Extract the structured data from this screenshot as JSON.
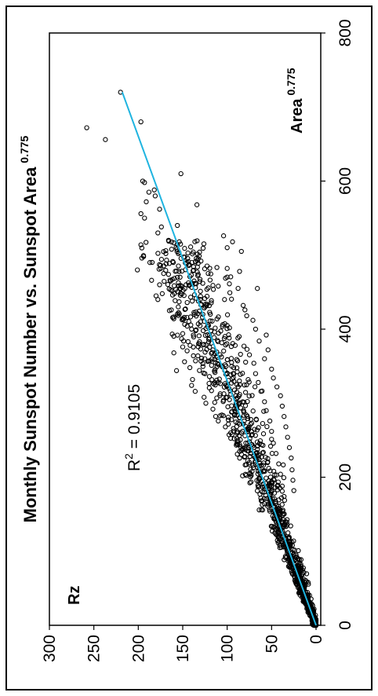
{
  "chart_data": {
    "type": "scatter",
    "title": "Monthly Sunspot Number vs. Sunspot Area",
    "title_superscript": "0.775",
    "xlabel": "Area",
    "xlabel_superscript": "0.775",
    "ylabel": "Rz",
    "xlim": [
      0,
      800
    ],
    "ylim": [
      0,
      300
    ],
    "x_ticks": [
      "0",
      "200",
      "400",
      "600",
      "800"
    ],
    "y_ticks": [
      "0",
      "50",
      "100",
      "150",
      "200",
      "250",
      "300"
    ],
    "grid": false,
    "orientation": "rotated-90-clockwise",
    "trendline": {
      "x": [
        0,
        720
      ],
      "y": [
        0,
        218
      ],
      "color": "#1fb4e0"
    },
    "r_squared_label": "R",
    "r_squared_exponent": "2",
    "r_squared_value": " = 0.9105",
    "marker_color": "#000000",
    "outliers": {
      "x": [
        720,
        680,
        672,
        656,
        600,
        598,
        588,
        585,
        580,
        572,
        562,
        556,
        550,
        538,
        530,
        520,
        514,
        498,
        496,
        490,
        486,
        480,
        474,
        470,
        466,
        460,
        452,
        448,
        445,
        440,
        436,
        430,
        425,
        420,
        414,
        410,
        404,
        400,
        398,
        394,
        392,
        388,
        384,
        380,
        376,
        372,
        368,
        364,
        360,
        356,
        352,
        348,
        344,
        340,
        336,
        332,
        328,
        324,
        320,
        316,
        312,
        308,
        304,
        300,
        296,
        292,
        288,
        284,
        280,
        276,
        272,
        268,
        264,
        260,
        256,
        252,
        248,
        244,
        240,
        236,
        232,
        228,
        224,
        220,
        610,
        568,
        540,
        526,
        518,
        510,
        505,
        482,
        478,
        458,
        455,
        440,
        432,
        426,
        418,
        412,
        405,
        400,
        392,
        388,
        384,
        378,
        372,
        366,
        360,
        354,
        346,
        340,
        334,
        328,
        322,
        316,
        310,
        302,
        296,
        290,
        282,
        276,
        268,
        262,
        254,
        246,
        240,
        232,
        226,
        218,
        210,
        204,
        196,
        188,
        182,
        174
      ],
      "y": [
        220,
        197,
        258,
        237,
        195,
        193,
        182,
        188,
        181,
        191,
        176,
        197,
        193,
        174,
        178,
        166,
        197,
        194,
        196,
        187,
        175,
        201,
        166,
        156,
        185,
        176,
        162,
        173,
        180,
        178,
        145,
        155,
        165,
        137,
        160,
        130,
        145,
        140,
        127,
        150,
        138,
        120,
        149,
        131,
        150,
        116,
        160,
        138,
        117,
        148,
        110,
        142,
        157,
        125,
        120,
        139,
        110,
        140,
        98,
        136,
        96,
        126,
        104,
        124,
        90,
        116,
        95,
        106,
        86,
        110,
        82,
        102,
        78,
        96,
        80,
        92,
        75,
        88,
        70,
        84,
        68,
        80,
        64,
        75,
        152,
        134,
        156,
        104,
        94,
        100,
        84,
        100,
        86,
        110,
        66,
        103,
        82,
        80,
        78,
        71,
        100,
        68,
        56,
        88,
        64,
        91,
        54,
        85,
        58,
        70,
        50,
        68,
        48,
        65,
        44,
        62,
        40,
        58,
        38,
        56,
        36,
        52,
        34,
        50,
        32,
        48,
        30,
        45,
        28,
        42,
        27,
        40,
        26,
        38,
        25,
        36
      ]
    },
    "cloud": {
      "n_points": 1300,
      "slope": 0.303,
      "x_max": 520,
      "spread": 0.14
    }
  }
}
